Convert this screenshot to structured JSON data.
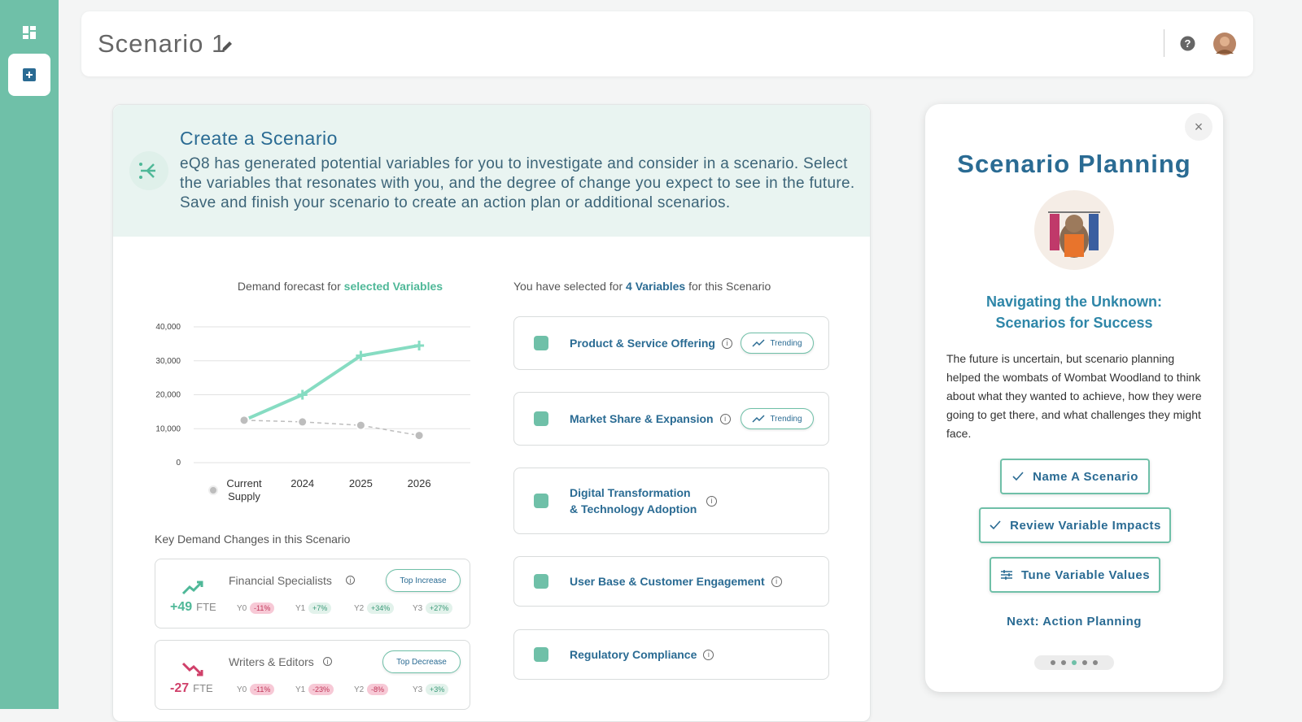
{
  "header": {
    "title": "Scenario 1"
  },
  "intro": {
    "title": "Create a Scenario",
    "text": "eQ8 has generated potential variables for you to investigate and consider in a scenario. Select the variables that resonates with you, and the degree of change you expect to see in the future. Save and finish your scenario to create an action plan or additional scenarios."
  },
  "chart_data": {
    "type": "line",
    "title": "Demand forecast for",
    "title_highlight": "selected Variables",
    "categories": [
      "Current Supply",
      "2024",
      "2025",
      "2026"
    ],
    "series": [
      {
        "color": "#86dcc2",
        "values": [
          12500,
          20000,
          31500,
          34500
        ]
      },
      {
        "color": "#bdbdbd",
        "values": [
          12500,
          12000,
          11000,
          8000
        ]
      }
    ],
    "ylim": [
      0,
      40000
    ],
    "yticks": [
      0,
      {
        "value": 10000,
        "label": "10,000"
      },
      {
        "value": 20000,
        "label": "20,000"
      },
      {
        "value": 30000,
        "label": "30,000"
      },
      {
        "value": 40000,
        "label": "40,000"
      }
    ],
    "grid": true
  },
  "selection": {
    "prefix": "You have selected for",
    "count": "4 Variables",
    "suffix": "for this Scenario"
  },
  "variables": [
    {
      "name": "Product & Service Offering",
      "badge": "Trending"
    },
    {
      "name": "Market Share & Expansion",
      "badge": "Trending"
    },
    {
      "name": "Digital Transformation & Technology Adoption"
    },
    {
      "name": "User Base & Customer Engagement"
    },
    {
      "name": "Regulatory Compliance"
    }
  ],
  "key_changes": {
    "title": "Key Demand Changes in this Scenario",
    "items": [
      {
        "name": "Financial Specialists",
        "badge": "Top Increase",
        "change": "+49",
        "unit": "FTE",
        "years": [
          {
            "label": "Y0",
            "value": "-11%"
          },
          {
            "label": "Y1",
            "value": "+7%"
          },
          {
            "label": "Y2",
            "value": "+34%"
          },
          {
            "label": "Y3",
            "value": "+27%"
          }
        ]
      },
      {
        "name": "Writers & Editors",
        "badge": "Top Decrease",
        "change": "-27",
        "unit": "FTE",
        "years": [
          {
            "label": "Y0",
            "value": "-11%"
          },
          {
            "label": "Y1",
            "value": "-23%"
          },
          {
            "label": "Y2",
            "value": "-8%"
          },
          {
            "label": "Y3",
            "value": "+3%"
          }
        ]
      }
    ]
  },
  "panel": {
    "title": "Scenario Planning",
    "subtitle": "Navigating the Unknown: Scenarios for Success",
    "text": "The future is uncertain, but scenario planning helped the wombats of Wombat Woodland to think about what they wanted to achieve, how they were going to get there, and what challenges they might face.",
    "buttons": [
      "Name A Scenario",
      "Review Variable Impacts",
      "Tune Variable Values"
    ],
    "next": "Next: Action Planning"
  }
}
